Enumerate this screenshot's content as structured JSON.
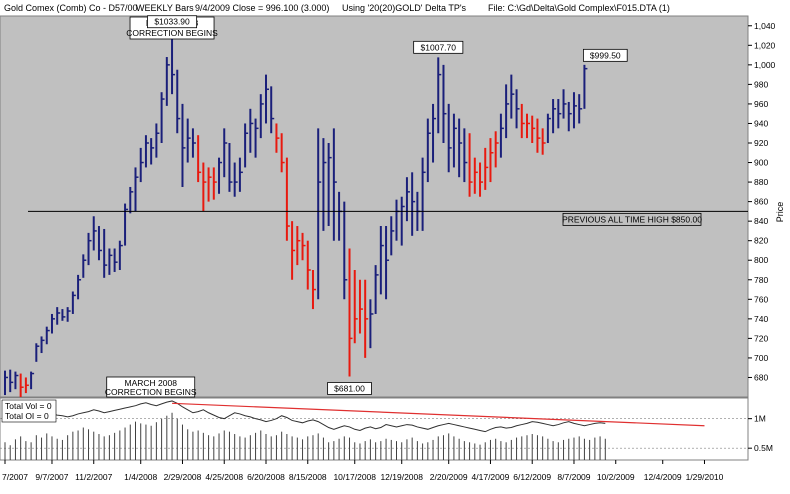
{
  "header": {
    "symbol": "Gold Comex (Comb) Co - D57/00",
    "bars": "WEEKLY Bars",
    "close_info": "9/4/2009 Close = 996.100 (3.000)",
    "using": "Using '20(20)GOLD' Delta TP's",
    "file": "File: C:\\Gd\\Delta\\Gold Complex\\F015.DTA (1)"
  },
  "colors": {
    "plot_bg": "#c0c0c0",
    "up_bar": "#1a1f7a",
    "down_bar": "#e8190f",
    "trendline": "#e03030",
    "level_line": "#000000"
  },
  "chart_data": {
    "type": "ohlc-bar",
    "ylabel": "Price",
    "ylim": [
      660,
      1050
    ],
    "yticks": [
      680,
      700,
      720,
      740,
      760,
      780,
      800,
      820,
      840,
      860,
      880,
      900,
      920,
      940,
      960,
      980,
      1000,
      1020,
      1040
    ],
    "ytick_labels": [
      "680",
      "700",
      "720",
      "740",
      "760",
      "780",
      "800",
      "820",
      "840",
      "860",
      "880",
      "900",
      "920",
      "940",
      "960",
      "980",
      "1,000",
      "1,020",
      "1,040"
    ],
    "xtick_labels": [
      "7/2007",
      "9/7/2007",
      "11/2/2007",
      "1/4/2008",
      "2/29/2008",
      "4/25/2008",
      "6/20/2008",
      "8/15/2008",
      "10/17/2008",
      "12/19/2008",
      "2/20/2009",
      "4/17/2009",
      "6/12/2009",
      "8/7/2009",
      "10/2/2009",
      "12/4/2009",
      "1/29/2010"
    ],
    "xtick_week_index": [
      0,
      9,
      17,
      26,
      34,
      42,
      50,
      58,
      67,
      76,
      85,
      93,
      101,
      109,
      117,
      126,
      134
    ],
    "bars": [
      {
        "h": 687,
        "l": 662,
        "c": 680,
        "down": false
      },
      {
        "h": 688,
        "l": 665,
        "c": 675,
        "down": false
      },
      {
        "h": 686,
        "l": 668,
        "c": 682,
        "down": false
      },
      {
        "h": 684,
        "l": 660,
        "c": 670,
        "down": true
      },
      {
        "h": 680,
        "l": 664,
        "c": 672,
        "down": true
      },
      {
        "h": 686,
        "l": 668,
        "c": 684,
        "down": false
      },
      {
        "h": 715,
        "l": 696,
        "c": 712,
        "down": false
      },
      {
        "h": 722,
        "l": 705,
        "c": 718,
        "down": false
      },
      {
        "h": 732,
        "l": 714,
        "c": 728,
        "down": false
      },
      {
        "h": 745,
        "l": 725,
        "c": 740,
        "down": false
      },
      {
        "h": 752,
        "l": 734,
        "c": 746,
        "down": false
      },
      {
        "h": 750,
        "l": 738,
        "c": 742,
        "down": false
      },
      {
        "h": 752,
        "l": 737,
        "c": 748,
        "down": false
      },
      {
        "h": 768,
        "l": 745,
        "c": 764,
        "down": false
      },
      {
        "h": 785,
        "l": 760,
        "c": 780,
        "down": false
      },
      {
        "h": 806,
        "l": 782,
        "c": 800,
        "down": false
      },
      {
        "h": 828,
        "l": 795,
        "c": 820,
        "down": false
      },
      {
        "h": 845,
        "l": 810,
        "c": 830,
        "down": false
      },
      {
        "h": 835,
        "l": 800,
        "c": 810,
        "down": false
      },
      {
        "h": 832,
        "l": 782,
        "c": 795,
        "down": false
      },
      {
        "h": 812,
        "l": 785,
        "c": 805,
        "down": false
      },
      {
        "h": 812,
        "l": 788,
        "c": 798,
        "down": false
      },
      {
        "h": 820,
        "l": 790,
        "c": 815,
        "down": false
      },
      {
        "h": 858,
        "l": 815,
        "c": 852,
        "down": false
      },
      {
        "h": 875,
        "l": 848,
        "c": 870,
        "down": false
      },
      {
        "h": 895,
        "l": 850,
        "c": 885,
        "down": false
      },
      {
        "h": 915,
        "l": 880,
        "c": 900,
        "down": false
      },
      {
        "h": 928,
        "l": 895,
        "c": 920,
        "down": false
      },
      {
        "h": 925,
        "l": 898,
        "c": 915,
        "down": false
      },
      {
        "h": 940,
        "l": 905,
        "c": 930,
        "down": false
      },
      {
        "h": 972,
        "l": 920,
        "c": 965,
        "down": false
      },
      {
        "h": 1008,
        "l": 958,
        "c": 1000,
        "down": false
      },
      {
        "h": 1033.9,
        "l": 970,
        "c": 990,
        "down": false
      },
      {
        "h": 995,
        "l": 930,
        "c": 945,
        "down": false
      },
      {
        "h": 960,
        "l": 875,
        "c": 915,
        "down": false
      },
      {
        "h": 945,
        "l": 900,
        "c": 925,
        "down": false
      },
      {
        "h": 935,
        "l": 905,
        "c": 920,
        "down": false
      },
      {
        "h": 928,
        "l": 880,
        "c": 890,
        "down": true
      },
      {
        "h": 900,
        "l": 850,
        "c": 880,
        "down": true
      },
      {
        "h": 895,
        "l": 860,
        "c": 885,
        "down": true
      },
      {
        "h": 895,
        "l": 862,
        "c": 880,
        "down": true
      },
      {
        "h": 905,
        "l": 868,
        "c": 900,
        "down": false
      },
      {
        "h": 935,
        "l": 885,
        "c": 920,
        "down": false
      },
      {
        "h": 920,
        "l": 870,
        "c": 880,
        "down": false
      },
      {
        "h": 900,
        "l": 865,
        "c": 880,
        "down": false
      },
      {
        "h": 905,
        "l": 870,
        "c": 890,
        "down": false
      },
      {
        "h": 940,
        "l": 895,
        "c": 930,
        "down": false
      },
      {
        "h": 955,
        "l": 910,
        "c": 940,
        "down": false
      },
      {
        "h": 945,
        "l": 905,
        "c": 935,
        "down": false
      },
      {
        "h": 970,
        "l": 925,
        "c": 960,
        "down": false
      },
      {
        "h": 990,
        "l": 940,
        "c": 975,
        "down": false
      },
      {
        "h": 978,
        "l": 930,
        "c": 945,
        "down": false
      },
      {
        "h": 940,
        "l": 910,
        "c": 925,
        "down": true
      },
      {
        "h": 930,
        "l": 890,
        "c": 900,
        "down": true
      },
      {
        "h": 905,
        "l": 820,
        "c": 835,
        "down": true
      },
      {
        "h": 840,
        "l": 780,
        "c": 810,
        "down": true
      },
      {
        "h": 835,
        "l": 795,
        "c": 820,
        "down": true
      },
      {
        "h": 828,
        "l": 800,
        "c": 815,
        "down": true
      },
      {
        "h": 820,
        "l": 770,
        "c": 790,
        "down": true
      },
      {
        "h": 790,
        "l": 750,
        "c": 770,
        "down": true
      },
      {
        "h": 935,
        "l": 760,
        "c": 880,
        "down": false
      },
      {
        "h": 925,
        "l": 830,
        "c": 900,
        "down": false
      },
      {
        "h": 920,
        "l": 835,
        "c": 905,
        "down": false
      },
      {
        "h": 935,
        "l": 820,
        "c": 880,
        "down": false
      },
      {
        "h": 870,
        "l": 820,
        "c": 850,
        "down": false
      },
      {
        "h": 860,
        "l": 760,
        "c": 780,
        "down": false
      },
      {
        "h": 812,
        "l": 681,
        "c": 720,
        "down": true
      },
      {
        "h": 790,
        "l": 715,
        "c": 740,
        "down": true
      },
      {
        "h": 780,
        "l": 725,
        "c": 750,
        "down": true
      },
      {
        "h": 780,
        "l": 700,
        "c": 740,
        "down": true
      },
      {
        "h": 760,
        "l": 710,
        "c": 745,
        "down": false
      },
      {
        "h": 795,
        "l": 745,
        "c": 785,
        "down": false
      },
      {
        "h": 835,
        "l": 765,
        "c": 815,
        "down": false
      },
      {
        "h": 835,
        "l": 760,
        "c": 800,
        "down": false
      },
      {
        "h": 845,
        "l": 805,
        "c": 830,
        "down": false
      },
      {
        "h": 862,
        "l": 820,
        "c": 850,
        "down": false
      },
      {
        "h": 865,
        "l": 815,
        "c": 855,
        "down": false
      },
      {
        "h": 885,
        "l": 840,
        "c": 870,
        "down": false
      },
      {
        "h": 890,
        "l": 825,
        "c": 860,
        "down": false
      },
      {
        "h": 870,
        "l": 830,
        "c": 850,
        "down": false
      },
      {
        "h": 905,
        "l": 830,
        "c": 890,
        "down": false
      },
      {
        "h": 945,
        "l": 880,
        "c": 930,
        "down": false
      },
      {
        "h": 960,
        "l": 900,
        "c": 945,
        "down": false
      },
      {
        "h": 1007.7,
        "l": 930,
        "c": 990,
        "down": false
      },
      {
        "h": 1000,
        "l": 920,
        "c": 950,
        "down": false
      },
      {
        "h": 960,
        "l": 890,
        "c": 915,
        "down": false
      },
      {
        "h": 950,
        "l": 895,
        "c": 935,
        "down": false
      },
      {
        "h": 945,
        "l": 885,
        "c": 920,
        "down": false
      },
      {
        "h": 935,
        "l": 880,
        "c": 900,
        "down": false
      },
      {
        "h": 930,
        "l": 865,
        "c": 880,
        "down": true
      },
      {
        "h": 905,
        "l": 868,
        "c": 890,
        "down": true
      },
      {
        "h": 900,
        "l": 865,
        "c": 880,
        "down": true
      },
      {
        "h": 915,
        "l": 872,
        "c": 895,
        "down": true
      },
      {
        "h": 925,
        "l": 880,
        "c": 910,
        "down": true
      },
      {
        "h": 932,
        "l": 895,
        "c": 920,
        "down": true
      },
      {
        "h": 950,
        "l": 905,
        "c": 935,
        "down": false
      },
      {
        "h": 980,
        "l": 925,
        "c": 960,
        "down": false
      },
      {
        "h": 990,
        "l": 945,
        "c": 970,
        "down": false
      },
      {
        "h": 975,
        "l": 935,
        "c": 955,
        "down": false
      },
      {
        "h": 960,
        "l": 925,
        "c": 940,
        "down": true
      },
      {
        "h": 950,
        "l": 925,
        "c": 940,
        "down": true
      },
      {
        "h": 948,
        "l": 920,
        "c": 935,
        "down": true
      },
      {
        "h": 945,
        "l": 910,
        "c": 925,
        "down": true
      },
      {
        "h": 935,
        "l": 908,
        "c": 920,
        "down": true
      },
      {
        "h": 950,
        "l": 920,
        "c": 945,
        "down": false
      },
      {
        "h": 965,
        "l": 930,
        "c": 955,
        "down": false
      },
      {
        "h": 965,
        "l": 935,
        "c": 950,
        "down": false
      },
      {
        "h": 975,
        "l": 945,
        "c": 960,
        "down": false
      },
      {
        "h": 962,
        "l": 932,
        "c": 950,
        "down": false
      },
      {
        "h": 972,
        "l": 935,
        "c": 958,
        "down": false
      },
      {
        "h": 970,
        "l": 940,
        "c": 955,
        "down": false
      },
      {
        "h": 1000,
        "l": 955,
        "c": 996.1,
        "down": false
      }
    ],
    "level_line": {
      "value": 850,
      "label": "PREVIOUS ALL TIME HIGH $850.00"
    },
    "annotations": [
      {
        "text": "MARCH 2008",
        "text2": "CORRECTION BEGINS",
        "week": 32,
        "price": 1046
      },
      {
        "text": "$1033.90",
        "week": 32,
        "price": 1033.9
      },
      {
        "text": "$1007.70",
        "week": 83,
        "price": 1007.7
      },
      {
        "text": "$999.50",
        "week": 115,
        "price": 999.5
      },
      {
        "text": "$681.00",
        "week": 66,
        "price": 681
      }
    ],
    "volume": {
      "legend": [
        "Total Vol = 0",
        "Total OI = 0"
      ],
      "yticks": [
        1.0,
        0.5
      ],
      "ytick_labels": [
        "1M",
        "0.5M"
      ],
      "ylim": [
        0.3,
        1.35
      ],
      "annotation": {
        "text": "MARCH 2008",
        "text2": "CORRECTION BEGINS",
        "week": 26
      },
      "oi": [
        1.02,
        1.0,
        1.03,
        1.05,
        1.02,
        1.04,
        1.06,
        1.05,
        1.07,
        1.08,
        1.06,
        1.05,
        1.03,
        1.05,
        1.08,
        1.1,
        1.12,
        1.15,
        1.13,
        1.1,
        1.12,
        1.14,
        1.16,
        1.18,
        1.2,
        1.22,
        1.25,
        1.27,
        1.24,
        1.22,
        1.25,
        1.28,
        1.3,
        1.26,
        1.2,
        1.15,
        1.1,
        1.12,
        1.15,
        1.1,
        1.06,
        1.02,
        1.0,
        1.05,
        1.1,
        1.08,
        1.05,
        1.03,
        1.0,
        0.98,
        0.95,
        0.97,
        1.0,
        1.05,
        1.02,
        0.97,
        0.95,
        0.93,
        0.96,
        0.98,
        0.95,
        0.9,
        0.85,
        0.82,
        0.85,
        0.88,
        0.86,
        0.82,
        0.8,
        0.84,
        0.86,
        0.83,
        0.85,
        0.9,
        0.88,
        0.86,
        0.88,
        0.9,
        0.89,
        0.86,
        0.84,
        0.82,
        0.85,
        0.88,
        0.9,
        0.92,
        0.9,
        0.88,
        0.86,
        0.84,
        0.82,
        0.8,
        0.78,
        0.82,
        0.85,
        0.86,
        0.84,
        0.85,
        0.88,
        0.9,
        0.92,
        0.95,
        0.94,
        0.92,
        0.9,
        0.88,
        0.9,
        0.93,
        0.95,
        0.92,
        0.9,
        0.88,
        0.9,
        0.92,
        0.93,
        0.92
      ],
      "vol": [
        0.6,
        0.55,
        0.65,
        0.7,
        0.62,
        0.6,
        0.72,
        0.68,
        0.75,
        0.7,
        0.66,
        0.64,
        0.72,
        0.78,
        0.8,
        0.85,
        0.82,
        0.78,
        0.74,
        0.7,
        0.72,
        0.76,
        0.8,
        0.85,
        0.9,
        0.95,
        0.92,
        0.9,
        0.88,
        0.94,
        1.0,
        1.05,
        1.1,
        1.0,
        0.9,
        0.82,
        0.78,
        0.8,
        0.76,
        0.72,
        0.7,
        0.75,
        0.8,
        0.78,
        0.74,
        0.7,
        0.68,
        0.72,
        0.76,
        0.8,
        0.74,
        0.7,
        0.72,
        0.78,
        0.74,
        0.7,
        0.68,
        0.65,
        0.7,
        0.72,
        0.75,
        0.68,
        0.6,
        0.62,
        0.66,
        0.7,
        0.68,
        0.6,
        0.58,
        0.62,
        0.65,
        0.6,
        0.62,
        0.66,
        0.64,
        0.62,
        0.6,
        0.65,
        0.68,
        0.62,
        0.58,
        0.6,
        0.64,
        0.7,
        0.72,
        0.75,
        0.7,
        0.66,
        0.62,
        0.6,
        0.58,
        0.56,
        0.6,
        0.64,
        0.66,
        0.62,
        0.6,
        0.64,
        0.68,
        0.7,
        0.72,
        0.74,
        0.72,
        0.7,
        0.66,
        0.62,
        0.6,
        0.64,
        0.66,
        0.68,
        0.7,
        0.66,
        0.64,
        0.68,
        0.7,
        0.66
      ],
      "trendline": {
        "from": {
          "week": 32,
          "value": 1.26
        },
        "to": {
          "week": 134,
          "value": 0.88
        }
      }
    }
  }
}
